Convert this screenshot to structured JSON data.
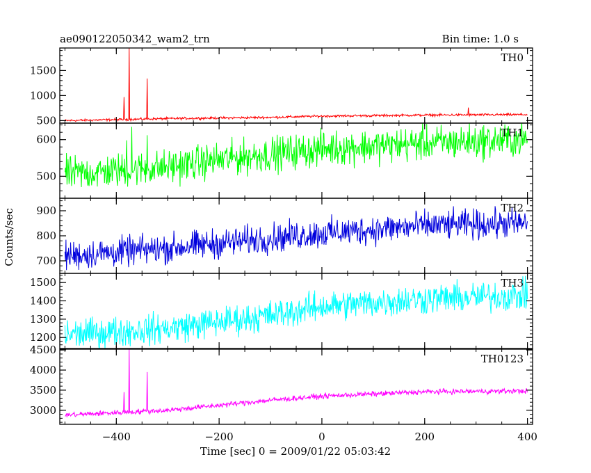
{
  "title_left": "ae090122050342_wam2_trn",
  "title_right": "Bin time: 1.0 s",
  "ylabel": "Counts/sec",
  "xlabel": "Time [sec] 0 = 2009/01/22 05:03:42",
  "chart_data": {
    "type": "line",
    "title": "ae090122050342_wam2_trn",
    "subtitle": "Bin time: 1.0 s",
    "xlabel": "Time [sec] 0 = 2009/01/22 05:03:42",
    "ylabel": "Counts/sec",
    "xlim": [
      -510,
      410
    ],
    "xticks": [
      -400,
      -200,
      0,
      200,
      400
    ],
    "x_range": [
      -500,
      400
    ],
    "grid": false,
    "panels": [
      {
        "name": "TH0",
        "color": "#ff0000",
        "ylim": [
          450,
          1950
        ],
        "yticks": [
          500,
          1000,
          1500
        ],
        "trend": [
          [
            -500,
            500
          ],
          [
            -300,
            540
          ],
          [
            -100,
            565
          ],
          [
            0,
            590
          ],
          [
            200,
            610
          ],
          [
            400,
            620
          ]
        ],
        "noise": 20,
        "spikes": [
          [
            -385,
            970
          ],
          [
            -375,
            1950
          ],
          [
            -340,
            1340
          ],
          [
            285,
            760
          ]
        ]
      },
      {
        "name": "TH1",
        "color": "#00ff00",
        "ylim": [
          440,
          645
        ],
        "yticks": [
          500,
          600
        ],
        "trend": [
          [
            -500,
            505
          ],
          [
            -300,
            525
          ],
          [
            -200,
            545
          ],
          [
            0,
            575
          ],
          [
            200,
            590
          ],
          [
            400,
            600
          ]
        ],
        "noise": 40,
        "spikes": [
          [
            -370,
            635
          ],
          [
            -340,
            612
          ],
          [
            -380,
            598
          ]
        ]
      },
      {
        "name": "TH2",
        "color": "#0000dd",
        "ylim": [
          650,
          950
        ],
        "yticks": [
          700,
          800,
          900
        ],
        "trend": [
          [
            -500,
            720
          ],
          [
            -300,
            750
          ],
          [
            -100,
            790
          ],
          [
            0,
            810
          ],
          [
            200,
            840
          ],
          [
            400,
            850
          ]
        ],
        "noise": 50,
        "spikes": []
      },
      {
        "name": "TH3",
        "color": "#00ffff",
        "ylim": [
          1140,
          1550
        ],
        "yticks": [
          1200,
          1300,
          1400,
          1500
        ],
        "trend": [
          [
            -500,
            1215
          ],
          [
            -300,
            1250
          ],
          [
            -100,
            1320
          ],
          [
            0,
            1370
          ],
          [
            200,
            1410
          ],
          [
            400,
            1430
          ]
        ],
        "noise": 70,
        "spikes": []
      },
      {
        "name": "TH0123",
        "color": "#ff00ff",
        "ylim": [
          2650,
          4520
        ],
        "yticks": [
          3000,
          3500,
          4000,
          4500
        ],
        "trend": [
          [
            -500,
            2880
          ],
          [
            -300,
            3000
          ],
          [
            -100,
            3250
          ],
          [
            0,
            3350
          ],
          [
            200,
            3460
          ],
          [
            400,
            3480
          ]
        ],
        "noise": 55,
        "spikes": [
          [
            -385,
            3450
          ],
          [
            -375,
            4520
          ],
          [
            -340,
            3950
          ]
        ]
      }
    ]
  }
}
